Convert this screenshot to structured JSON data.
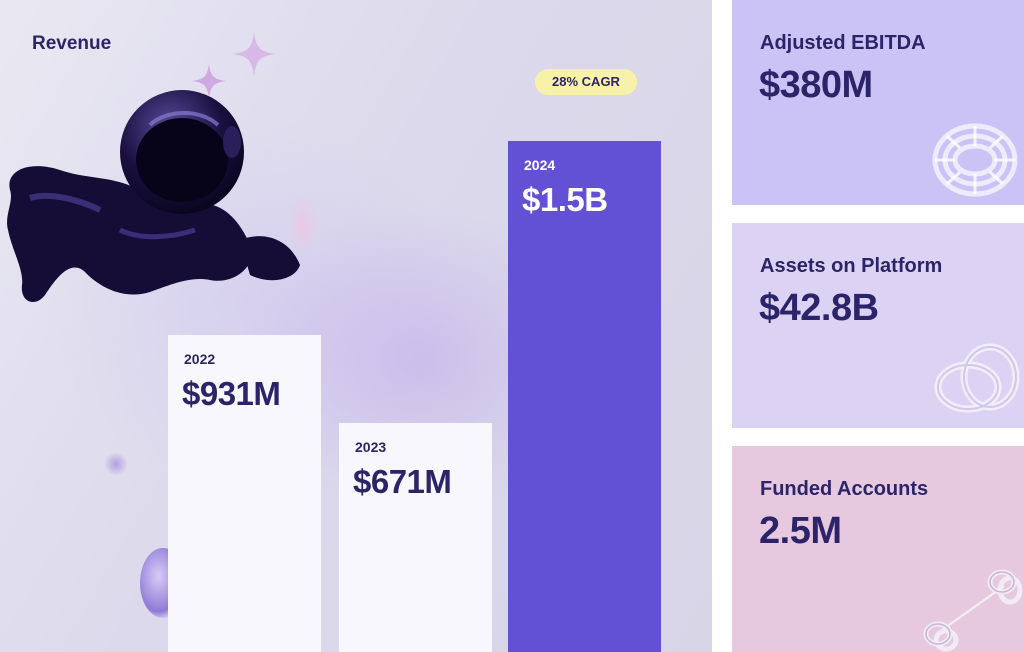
{
  "chart_data": {
    "type": "bar",
    "title": "Revenue",
    "categories": [
      "2022",
      "2023",
      "2024"
    ],
    "values": [
      931,
      671,
      1500
    ],
    "value_labels": [
      "$931M",
      "$671M",
      "$1.5B"
    ],
    "unit": "$M",
    "ylim": [
      0,
      1650
    ],
    "grid": false,
    "annotation": "28% CAGR",
    "colors": {
      "bars": [
        "#f8f7fd",
        "#f8f7fd",
        "#6251d4"
      ],
      "bar_text": [
        "#2c2468",
        "#2c2468",
        "#ffffff"
      ],
      "badge": "#f8f2a8"
    }
  },
  "kpis": [
    {
      "label": "Adjusted EBITDA",
      "value": "$380M",
      "color": "#cbc3f5"
    },
    {
      "label": "Assets on Platform",
      "value": "$42.8B",
      "color": "#dcd3f4"
    },
    {
      "label": "Funded Accounts",
      "value": "2.5M",
      "color": "#e7c9df"
    }
  ],
  "colors": {
    "text_dark": "#2c2468"
  }
}
